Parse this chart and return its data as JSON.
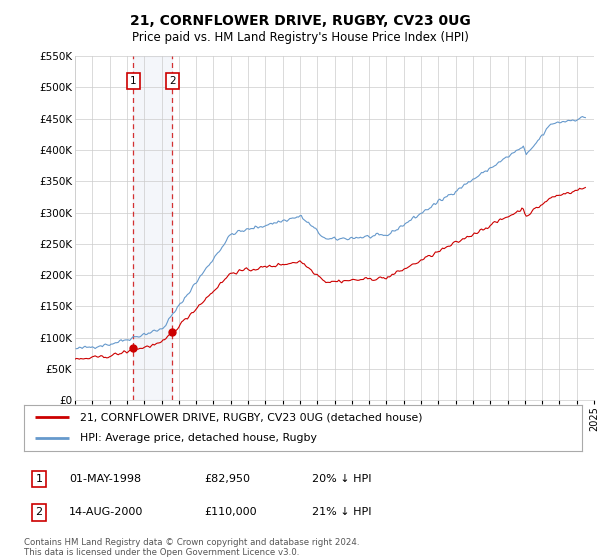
{
  "title": "21, CORNFLOWER DRIVE, RUGBY, CV23 0UG",
  "subtitle": "Price paid vs. HM Land Registry's House Price Index (HPI)",
  "x_start_year": 1995,
  "x_end_year": 2025,
  "y_min": 0,
  "y_max": 550000,
  "y_ticks": [
    0,
    50000,
    100000,
    150000,
    200000,
    250000,
    300000,
    350000,
    400000,
    450000,
    500000,
    550000
  ],
  "sale1_date": 1998.37,
  "sale1_price": 82950,
  "sale1_label": "1",
  "sale2_date": 2000.62,
  "sale2_price": 110000,
  "sale2_label": "2",
  "line_color_property": "#cc0000",
  "line_color_hpi": "#6699cc",
  "marker_color_property": "#cc0000",
  "grid_color": "#cccccc",
  "background_color": "#ffffff",
  "legend_label_property": "21, CORNFLOWER DRIVE, RUGBY, CV23 0UG (detached house)",
  "legend_label_hpi": "HPI: Average price, detached house, Rugby",
  "footnote": "Contains HM Land Registry data © Crown copyright and database right 2024.\nThis data is licensed under the Open Government Licence v3.0.",
  "table_row1": [
    "1",
    "01-MAY-1998",
    "£82,950",
    "20% ↓ HPI"
  ],
  "table_row2": [
    "2",
    "14-AUG-2000",
    "£110,000",
    "21% ↓ HPI"
  ]
}
